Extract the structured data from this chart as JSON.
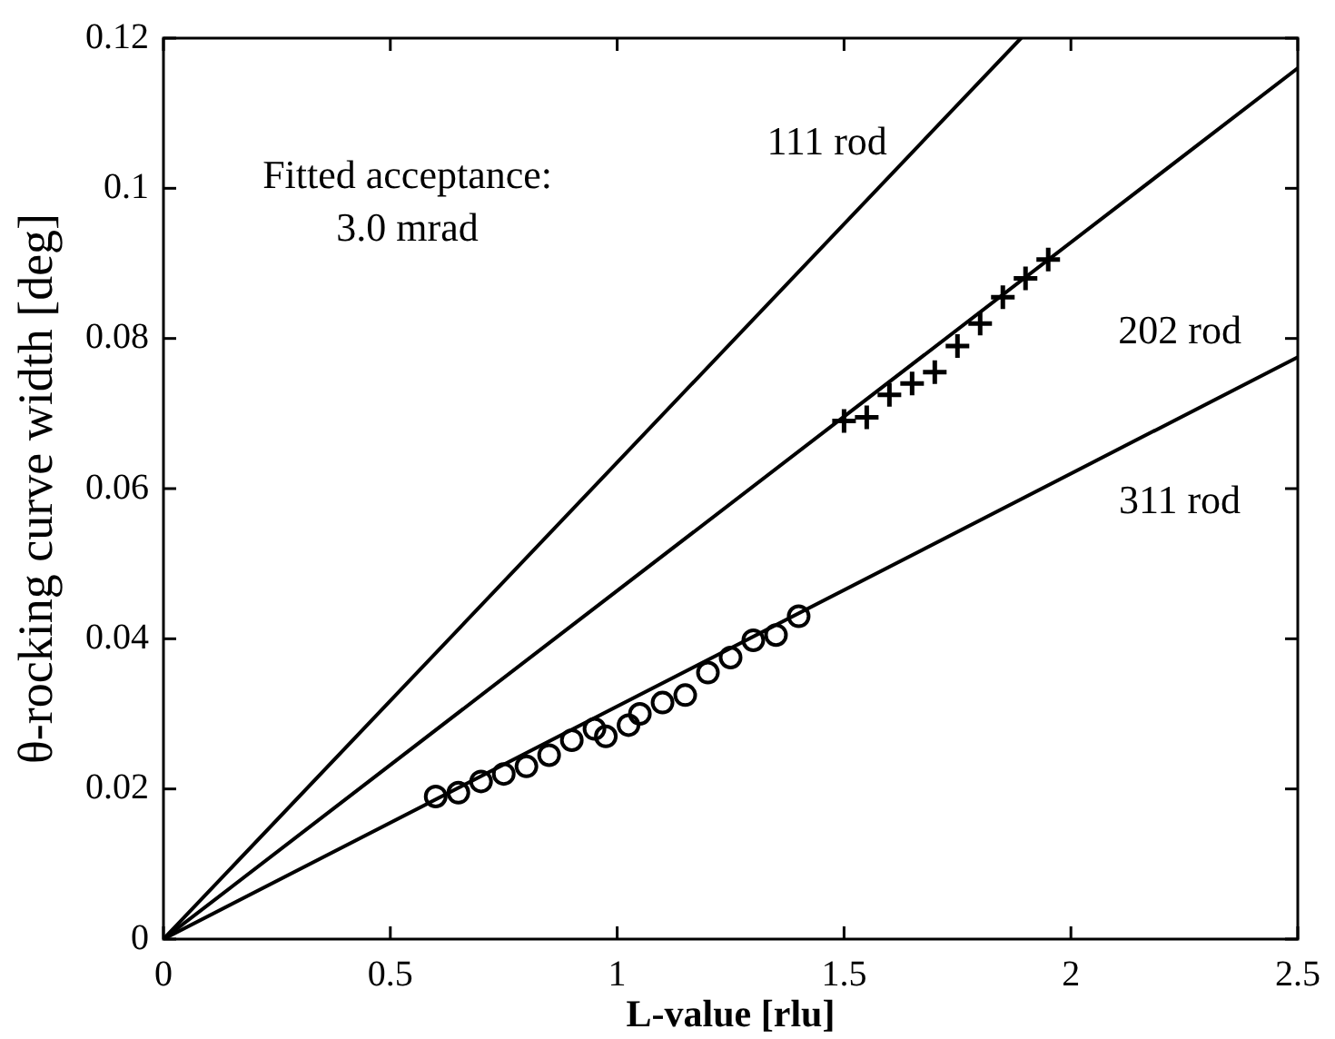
{
  "chart_data": {
    "type": "line",
    "xlabel": "L-value [rlu]",
    "ylabel": "θ-rocking curve width [deg]",
    "xlim": [
      0,
      2.5
    ],
    "ylim": [
      0,
      0.12
    ],
    "xticks": [
      0,
      0.5,
      1,
      1.5,
      2,
      2.5
    ],
    "yticks": [
      0,
      0.02,
      0.04,
      0.06,
      0.08,
      0.1,
      0.12
    ],
    "grid": false,
    "legend": false,
    "series": [
      {
        "color": "#000000",
        "marker": "none",
        "x": [
          0,
          1.89
        ],
        "values": [
          0,
          0.12
        ]
      },
      {
        "color": "#000000",
        "marker": "none",
        "x": [
          0,
          2.5
        ],
        "values": [
          0,
          0.116
        ]
      },
      {
        "color": "#000000",
        "marker": "none",
        "x": [
          0,
          2.5
        ],
        "values": [
          0,
          0.0775
        ]
      },
      {
        "type": "scatter",
        "color": "#000000",
        "marker": "circle",
        "x": [
          0.6,
          0.65,
          0.7,
          0.75,
          0.8,
          0.85,
          0.9,
          0.95,
          0.975,
          1.025,
          1.05,
          1.1,
          1.15,
          1.2,
          1.25,
          1.3,
          1.35,
          1.4
        ],
        "values": [
          0.019,
          0.0195,
          0.021,
          0.022,
          0.023,
          0.0245,
          0.0265,
          0.028,
          0.027,
          0.0285,
          0.03,
          0.0315,
          0.0325,
          0.0355,
          0.0375,
          0.0398,
          0.0405,
          0.043
        ]
      },
      {
        "type": "scatter",
        "color": "#000000",
        "marker": "cross",
        "x": [
          1.5,
          1.55,
          1.6,
          1.65,
          1.7,
          1.75,
          1.8,
          1.85,
          1.9,
          1.95
        ],
        "values": [
          0.069,
          0.0695,
          0.0725,
          0.074,
          0.0755,
          0.079,
          0.082,
          0.0855,
          0.088,
          0.0905
        ]
      }
    ],
    "annotations": [
      "Fitted acceptance:\n3.0 mrad",
      "111 rod",
      "202 rod",
      "311 rod"
    ]
  }
}
